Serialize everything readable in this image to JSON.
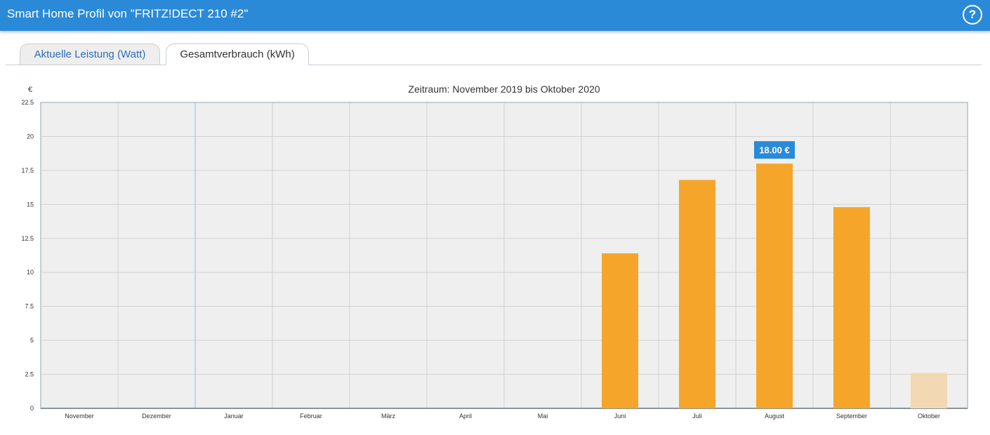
{
  "header": {
    "title": "Smart Home Profil von \"FRITZ!DECT 210 #2\"",
    "help_icon": "help-question-icon",
    "help_label": "?"
  },
  "tabs": [
    {
      "label": "Aktuelle Leistung (Watt)",
      "active": false
    },
    {
      "label": "Gesamtverbrauch (kWh)",
      "active": true
    }
  ],
  "chart_data": {
    "type": "bar",
    "title": "Zeitraum: November 2019 bis Oktober 2020",
    "ylabel": "€",
    "xlabel": "",
    "ylim": [
      0,
      22.5
    ],
    "yticks": [
      "0",
      "2.5",
      "5",
      "7.5",
      "10",
      "12.5",
      "15",
      "17.5",
      "20",
      "22.5"
    ],
    "categories": [
      "November",
      "Dezember",
      "Januar",
      "Februar",
      "März",
      "April",
      "Mai",
      "Juni",
      "Juli",
      "August",
      "September",
      "Oktober"
    ],
    "values": [
      0,
      0,
      0,
      0,
      0,
      0,
      0,
      11.4,
      16.8,
      18.0,
      14.8,
      2.6
    ],
    "partial_period": "Oktober",
    "year_divider_before": "Januar",
    "tooltip": {
      "category": "August",
      "label": "18.00 €"
    },
    "grid": true,
    "legend": "none",
    "colors": {
      "bar": "#f5a62a",
      "bar_partial": "#f2d9b4",
      "plot_background": "#efefef",
      "year_divider": "#a8cff0",
      "tooltip_background": "#2a8ad8"
    }
  }
}
